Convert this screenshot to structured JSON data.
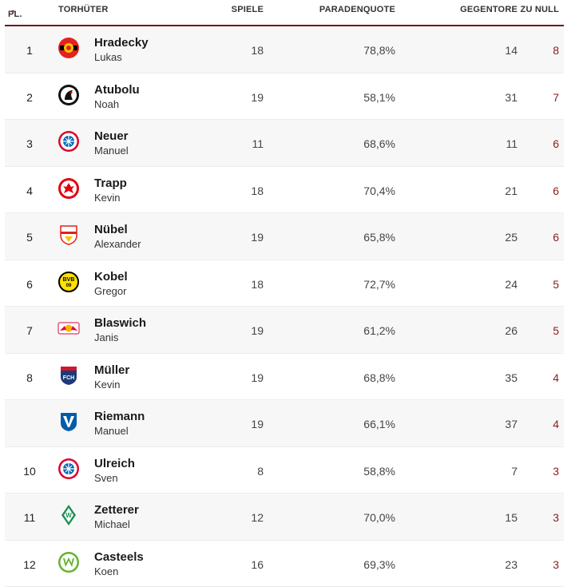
{
  "header": {
    "rank": "PL.",
    "sort_arrow": "^",
    "name": "TORHÜTER",
    "games": "SPIELE",
    "save_rate": "PARADENQUOTE",
    "goals_against": "GEGENTORE",
    "clean_sheets": "ZU NULL"
  },
  "rows": [
    {
      "rank": "1",
      "last": "Hradecky",
      "first": "Lukas",
      "games": "18",
      "save_rate": "78,8%",
      "goals_against": "14",
      "clean_sheets": "8",
      "logo": "leverkusen-logo"
    },
    {
      "rank": "2",
      "last": "Atubolu",
      "first": "Noah",
      "games": "19",
      "save_rate": "58,1%",
      "goals_against": "31",
      "clean_sheets": "7",
      "logo": "freiburg-logo"
    },
    {
      "rank": "3",
      "last": "Neuer",
      "first": "Manuel",
      "games": "11",
      "save_rate": "68,6%",
      "goals_against": "11",
      "clean_sheets": "6",
      "logo": "bayern-logo"
    },
    {
      "rank": "4",
      "last": "Trapp",
      "first": "Kevin",
      "games": "18",
      "save_rate": "70,4%",
      "goals_against": "21",
      "clean_sheets": "6",
      "logo": "frankfurt-logo"
    },
    {
      "rank": "5",
      "last": "Nübel",
      "first": "Alexander",
      "games": "19",
      "save_rate": "65,8%",
      "goals_against": "25",
      "clean_sheets": "6",
      "logo": "stuttgart-logo"
    },
    {
      "rank": "6",
      "last": "Kobel",
      "first": "Gregor",
      "games": "18",
      "save_rate": "72,7%",
      "goals_against": "24",
      "clean_sheets": "5",
      "logo": "dortmund-logo"
    },
    {
      "rank": "7",
      "last": "Blaswich",
      "first": "Janis",
      "games": "19",
      "save_rate": "61,2%",
      "goals_against": "26",
      "clean_sheets": "5",
      "logo": "leipzig-logo"
    },
    {
      "rank": "8",
      "last": "Müller",
      "first": "Kevin",
      "games": "19",
      "save_rate": "68,8%",
      "goals_against": "35",
      "clean_sheets": "4",
      "logo": "heidenheim-logo"
    },
    {
      "rank": "",
      "last": "Riemann",
      "first": "Manuel",
      "games": "19",
      "save_rate": "66,1%",
      "goals_against": "37",
      "clean_sheets": "4",
      "logo": "bochum-logo"
    },
    {
      "rank": "10",
      "last": "Ulreich",
      "first": "Sven",
      "games": "8",
      "save_rate": "58,8%",
      "goals_against": "7",
      "clean_sheets": "3",
      "logo": "bayern-logo"
    },
    {
      "rank": "11",
      "last": "Zetterer",
      "first": "Michael",
      "games": "12",
      "save_rate": "70,0%",
      "goals_against": "15",
      "clean_sheets": "3",
      "logo": "bremen-logo"
    },
    {
      "rank": "12",
      "last": "Casteels",
      "first": "Koen",
      "games": "16",
      "save_rate": "69,3%",
      "goals_against": "23",
      "clean_sheets": "3",
      "logo": "wolfsburg-logo"
    }
  ],
  "colors": {
    "accent": "#6e1b1b",
    "clean_sheet_text": "#8e1a1a",
    "row_alt": "#f7f7f7"
  }
}
